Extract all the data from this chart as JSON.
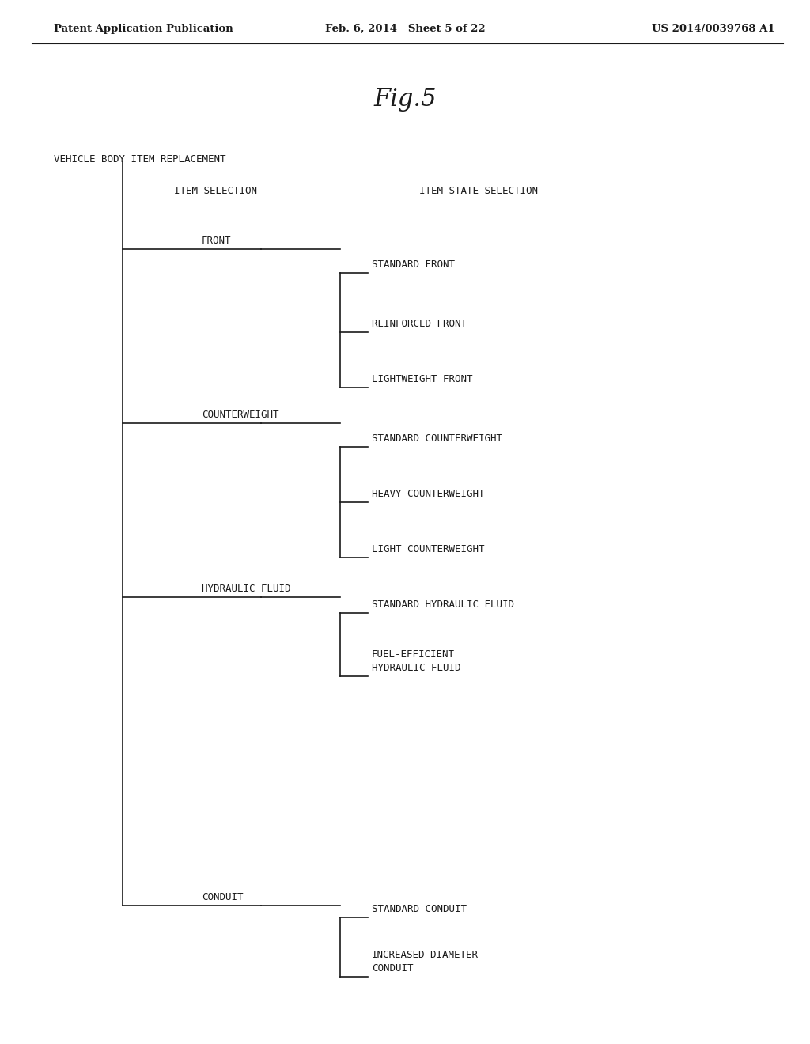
{
  "header_left": "Patent Application Publication",
  "header_mid": "Feb. 6, 2014   Sheet 5 of 22",
  "header_right": "US 2014/0039768 A1",
  "fig_label": "Fig.5",
  "root_label": "VEHICLE BODY ITEM REPLACEMENT",
  "col1_header": "ITEM SELECTION",
  "col2_header": "ITEM STATE SELECTION",
  "background_color": "#ffffff",
  "line_color": "#1a1a1a",
  "text_color": "#1a1a1a",
  "tree_items": [
    {
      "item": "FRONT",
      "subitems": [
        "STANDARD FRONT",
        "REINFORCED FRONT",
        "LIGHTWEIGHT FRONT"
      ]
    },
    {
      "item": "COUNTERWEIGHT",
      "subitems": [
        "STANDARD COUNTERWEIGHT",
        "HEAVY COUNTERWEIGHT",
        "LIGHT COUNTERWEIGHT"
      ]
    },
    {
      "item": "HYDRAULIC FLUID",
      "subitems": [
        "STANDARD HYDRAULIC FLUID",
        "FUEL-EFFICIENT\nHYDRAULIC FLUID"
      ]
    },
    {
      "item": "CONDUIT",
      "subitems": [
        "STANDARD CONDUIT",
        "INCREASED-DIAMETER\nCONDUIT"
      ]
    }
  ]
}
